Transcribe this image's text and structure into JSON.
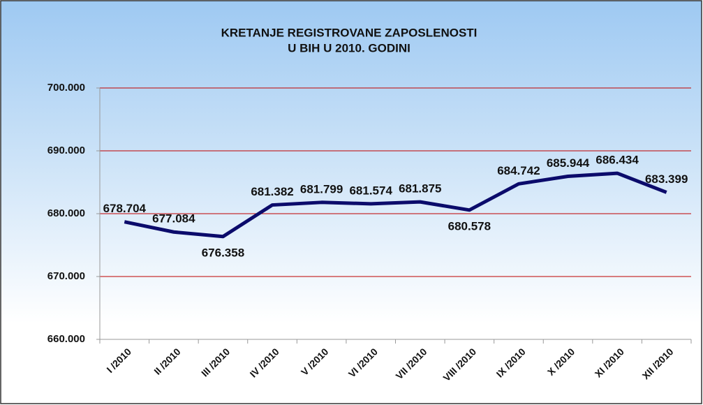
{
  "chart_data": {
    "type": "line",
    "title": [
      "KRETANJE REGISTROVANE ZAPOSLENOSTI",
      "U BIH U 2010. GODINI"
    ],
    "categories": [
      "I /2010",
      "II /2010",
      "III /2010",
      "IV /2010",
      "V /2010",
      "VI /2010",
      "VII /2010",
      "VIII /2010",
      "IX /2010",
      "X /2010",
      "XI /2010",
      "XII /2010"
    ],
    "series": [
      {
        "color": "#0b0b6b",
        "values": [
          678704,
          677084,
          676358,
          681382,
          681799,
          681574,
          681875,
          680578,
          684742,
          685944,
          686434,
          683399
        ],
        "value_labels": [
          "678.704",
          "677.084",
          "676.358",
          "681.382",
          "681.799",
          "681.574",
          "681.875",
          "680.578",
          "684.742",
          "685.944",
          "686.434",
          "683.399"
        ]
      }
    ],
    "ylim": [
      660000,
      700000
    ],
    "yticks": [
      {
        "value": 660000,
        "label": "660.000"
      },
      {
        "value": 670000,
        "label": "670.000"
      },
      {
        "value": 680000,
        "label": "680.000"
      },
      {
        "value": 690000,
        "label": "690.000"
      },
      {
        "value": 700000,
        "label": "700.000"
      }
    ],
    "grid": true,
    "grid_color": "#c00000"
  }
}
